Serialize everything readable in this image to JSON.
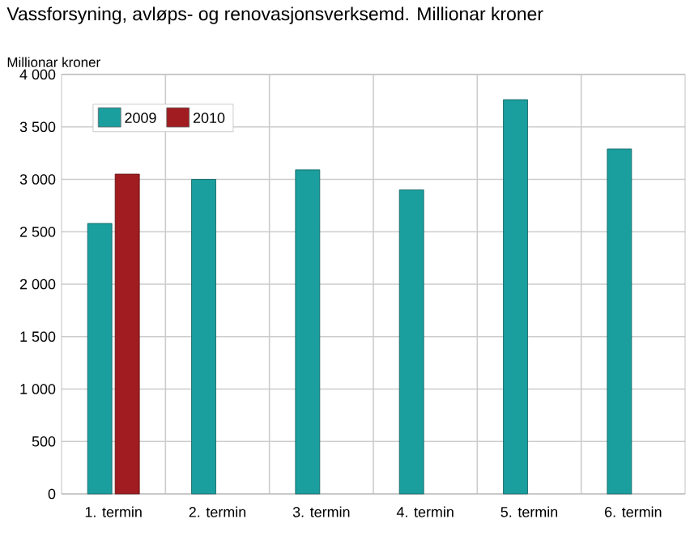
{
  "chart_data": {
    "type": "bar",
    "title": "Vassforsyning, avløps- og renovasjonsverksemd. Millionar kroner",
    "ylabel": "Millionar kroner",
    "categories": [
      "1. termin",
      "2. termin",
      "3. termin",
      "4. termin",
      "5. termin",
      "6. termin"
    ],
    "series": [
      {
        "name": "2009",
        "color": "#1a9e9e",
        "values": [
          2580,
          3000,
          3090,
          2900,
          3760,
          3290
        ]
      },
      {
        "name": "2010",
        "color": "#a01c20",
        "values": [
          3050,
          null,
          null,
          null,
          null,
          null
        ]
      }
    ],
    "ylim": [
      0,
      4000
    ],
    "yticks": [
      {
        "value": 0,
        "label": "0"
      },
      {
        "value": 500,
        "label": "500"
      },
      {
        "value": 1000,
        "label": "1 000"
      },
      {
        "value": 1500,
        "label": "1 500"
      },
      {
        "value": 2000,
        "label": "2 000"
      },
      {
        "value": 2500,
        "label": "2 500"
      },
      {
        "value": 3000,
        "label": "3 000"
      },
      {
        "value": 3500,
        "label": "3 500"
      },
      {
        "value": 4000,
        "label": "4 000"
      }
    ],
    "grid": true,
    "legend": "top left"
  }
}
